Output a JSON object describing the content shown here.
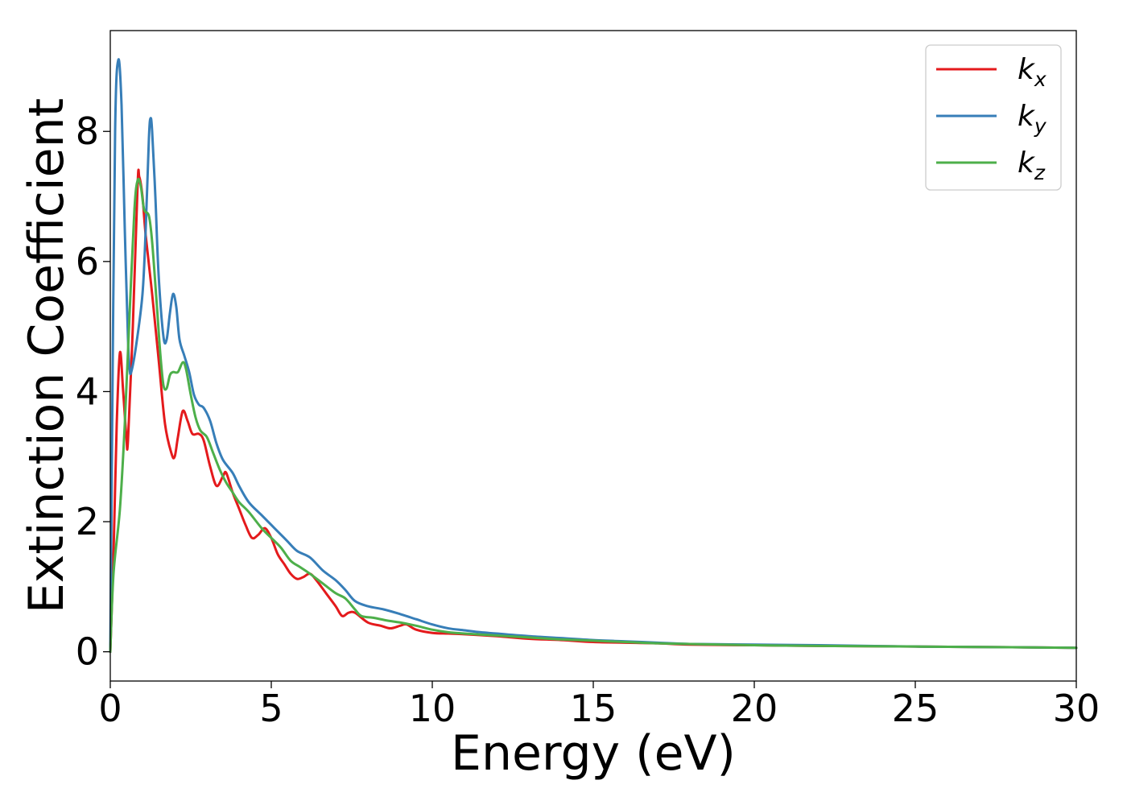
{
  "chart_data": {
    "type": "line",
    "title": "",
    "xlabel": "Energy (eV)",
    "ylabel": "Extinction Coefficient",
    "xlim": [
      0,
      30
    ],
    "ylim": [
      -0.45,
      9.55
    ],
    "xticks": [
      0,
      5,
      10,
      15,
      20,
      25,
      30
    ],
    "yticks": [
      0,
      2,
      4,
      6,
      8
    ],
    "grid": false,
    "legend": {
      "position": "top-right"
    },
    "series": [
      {
        "name": "k",
        "subscript": "x",
        "color": "#e41a1c",
        "points": [
          [
            0,
            0
          ],
          [
            0.1,
            1.5
          ],
          [
            0.2,
            3.5
          ],
          [
            0.3,
            4.6
          ],
          [
            0.4,
            4.0
          ],
          [
            0.5,
            3.3
          ],
          [
            0.55,
            3.25
          ],
          [
            0.7,
            5.0
          ],
          [
            0.85,
            7.2
          ],
          [
            0.9,
            7.3
          ],
          [
            1.0,
            7.0
          ],
          [
            1.1,
            6.4
          ],
          [
            1.3,
            5.5
          ],
          [
            1.5,
            4.5
          ],
          [
            1.7,
            3.5
          ],
          [
            1.9,
            3.05
          ],
          [
            2.0,
            3.0
          ],
          [
            2.1,
            3.3
          ],
          [
            2.25,
            3.7
          ],
          [
            2.4,
            3.55
          ],
          [
            2.55,
            3.35
          ],
          [
            2.75,
            3.35
          ],
          [
            2.9,
            3.25
          ],
          [
            3.1,
            2.85
          ],
          [
            3.3,
            2.55
          ],
          [
            3.5,
            2.7
          ],
          [
            3.6,
            2.75
          ],
          [
            3.8,
            2.45
          ],
          [
            4.0,
            2.2
          ],
          [
            4.2,
            1.95
          ],
          [
            4.4,
            1.75
          ],
          [
            4.6,
            1.8
          ],
          [
            4.8,
            1.9
          ],
          [
            5.0,
            1.75
          ],
          [
            5.2,
            1.5
          ],
          [
            5.4,
            1.35
          ],
          [
            5.6,
            1.2
          ],
          [
            5.8,
            1.12
          ],
          [
            6.0,
            1.15
          ],
          [
            6.2,
            1.2
          ],
          [
            6.4,
            1.1
          ],
          [
            6.7,
            0.9
          ],
          [
            7.0,
            0.7
          ],
          [
            7.2,
            0.55
          ],
          [
            7.4,
            0.6
          ],
          [
            7.6,
            0.6
          ],
          [
            8.0,
            0.45
          ],
          [
            8.4,
            0.4
          ],
          [
            8.7,
            0.36
          ],
          [
            9.0,
            0.4
          ],
          [
            9.2,
            0.42
          ],
          [
            9.5,
            0.34
          ],
          [
            10.0,
            0.29
          ],
          [
            10.5,
            0.28
          ],
          [
            11.0,
            0.27
          ],
          [
            12.0,
            0.24
          ],
          [
            13.0,
            0.2
          ],
          [
            14.0,
            0.18
          ],
          [
            15.0,
            0.15
          ],
          [
            16.0,
            0.14
          ],
          [
            17.0,
            0.13
          ],
          [
            18.0,
            0.11
          ],
          [
            20.0,
            0.1
          ],
          [
            22.0,
            0.09
          ],
          [
            25.0,
            0.08
          ],
          [
            28.0,
            0.07
          ],
          [
            30.0,
            0.06
          ]
        ]
      },
      {
        "name": "k",
        "subscript": "y",
        "color": "#377eb8",
        "points": [
          [
            0,
            0
          ],
          [
            0.05,
            3.0
          ],
          [
            0.15,
            8.0
          ],
          [
            0.25,
            9.1
          ],
          [
            0.35,
            8.4
          ],
          [
            0.45,
            6.5
          ],
          [
            0.55,
            4.8
          ],
          [
            0.6,
            4.35
          ],
          [
            0.65,
            4.3
          ],
          [
            0.8,
            4.7
          ],
          [
            1.0,
            5.5
          ],
          [
            1.1,
            6.5
          ],
          [
            1.2,
            7.9
          ],
          [
            1.25,
            8.2
          ],
          [
            1.3,
            8.0
          ],
          [
            1.4,
            7.0
          ],
          [
            1.5,
            5.8
          ],
          [
            1.65,
            4.85
          ],
          [
            1.75,
            4.8
          ],
          [
            1.85,
            5.2
          ],
          [
            1.95,
            5.5
          ],
          [
            2.05,
            5.3
          ],
          [
            2.15,
            4.8
          ],
          [
            2.3,
            4.55
          ],
          [
            2.45,
            4.3
          ],
          [
            2.6,
            3.95
          ],
          [
            2.75,
            3.8
          ],
          [
            2.9,
            3.75
          ],
          [
            3.1,
            3.55
          ],
          [
            3.3,
            3.2
          ],
          [
            3.5,
            2.95
          ],
          [
            3.8,
            2.75
          ],
          [
            4.0,
            2.55
          ],
          [
            4.3,
            2.3
          ],
          [
            4.7,
            2.1
          ],
          [
            5.0,
            1.95
          ],
          [
            5.3,
            1.8
          ],
          [
            5.5,
            1.7
          ],
          [
            5.8,
            1.55
          ],
          [
            6.2,
            1.45
          ],
          [
            6.6,
            1.25
          ],
          [
            7.0,
            1.1
          ],
          [
            7.3,
            0.95
          ],
          [
            7.6,
            0.78
          ],
          [
            8.0,
            0.7
          ],
          [
            8.5,
            0.65
          ],
          [
            9.0,
            0.58
          ],
          [
            9.5,
            0.5
          ],
          [
            10.0,
            0.42
          ],
          [
            10.5,
            0.36
          ],
          [
            11.0,
            0.33
          ],
          [
            11.5,
            0.3
          ],
          [
            12.0,
            0.28
          ],
          [
            13.0,
            0.24
          ],
          [
            14.0,
            0.21
          ],
          [
            15.0,
            0.18
          ],
          [
            16.0,
            0.16
          ],
          [
            17.0,
            0.14
          ],
          [
            18.0,
            0.12
          ],
          [
            20.0,
            0.11
          ],
          [
            22.0,
            0.1
          ],
          [
            25.0,
            0.08
          ],
          [
            28.0,
            0.07
          ],
          [
            30.0,
            0.06
          ]
        ]
      },
      {
        "name": "k",
        "subscript": "z",
        "color": "#4daf4a",
        "points": [
          [
            0,
            0
          ],
          [
            0.1,
            1.2
          ],
          [
            0.3,
            2.2
          ],
          [
            0.45,
            3.5
          ],
          [
            0.6,
            5.2
          ],
          [
            0.75,
            6.8
          ],
          [
            0.85,
            7.25
          ],
          [
            0.95,
            7.15
          ],
          [
            1.05,
            6.8
          ],
          [
            1.2,
            6.7
          ],
          [
            1.3,
            6.3
          ],
          [
            1.45,
            5.3
          ],
          [
            1.55,
            4.6
          ],
          [
            1.65,
            4.1
          ],
          [
            1.75,
            4.05
          ],
          [
            1.85,
            4.25
          ],
          [
            1.95,
            4.3
          ],
          [
            2.1,
            4.3
          ],
          [
            2.25,
            4.45
          ],
          [
            2.35,
            4.35
          ],
          [
            2.5,
            3.95
          ],
          [
            2.65,
            3.6
          ],
          [
            2.8,
            3.4
          ],
          [
            3.0,
            3.3
          ],
          [
            3.2,
            3.05
          ],
          [
            3.4,
            2.8
          ],
          [
            3.6,
            2.6
          ],
          [
            3.8,
            2.45
          ],
          [
            4.0,
            2.3
          ],
          [
            4.3,
            2.15
          ],
          [
            4.7,
            1.9
          ],
          [
            5.0,
            1.75
          ],
          [
            5.3,
            1.6
          ],
          [
            5.6,
            1.4
          ],
          [
            5.9,
            1.3
          ],
          [
            6.2,
            1.2
          ],
          [
            6.6,
            1.05
          ],
          [
            7.0,
            0.9
          ],
          [
            7.3,
            0.82
          ],
          [
            7.6,
            0.65
          ],
          [
            7.8,
            0.55
          ],
          [
            8.2,
            0.52
          ],
          [
            8.6,
            0.48
          ],
          [
            9.0,
            0.45
          ],
          [
            9.5,
            0.4
          ],
          [
            10.0,
            0.34
          ],
          [
            10.5,
            0.3
          ],
          [
            11.0,
            0.28
          ],
          [
            12.0,
            0.25
          ],
          [
            13.0,
            0.22
          ],
          [
            14.0,
            0.19
          ],
          [
            15.0,
            0.17
          ],
          [
            16.0,
            0.15
          ],
          [
            17.0,
            0.13
          ],
          [
            18.0,
            0.12
          ],
          [
            20.0,
            0.1
          ],
          [
            22.0,
            0.09
          ],
          [
            25.0,
            0.08
          ],
          [
            28.0,
            0.07
          ],
          [
            30.0,
            0.06
          ]
        ]
      }
    ]
  }
}
